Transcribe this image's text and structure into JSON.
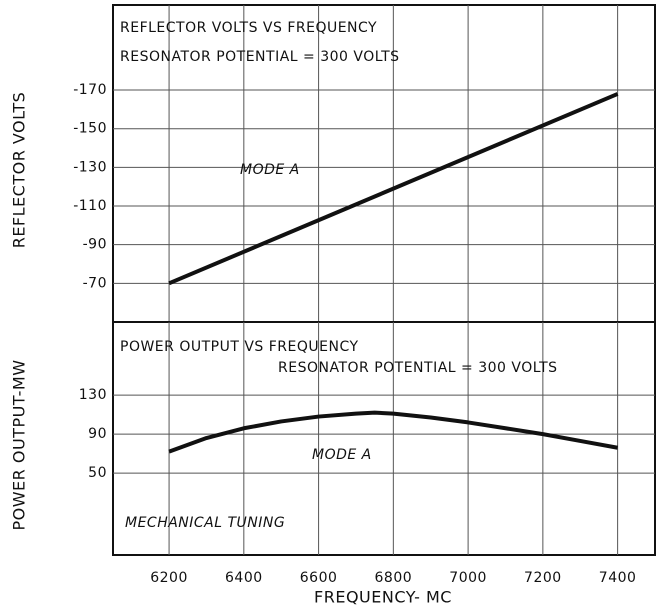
{
  "chart_data": [
    {
      "type": "line",
      "title": "REFLECTOR VOLTS VS FREQUENCY",
      "subtitle": "RESONATOR POTENTIAL = 300 VOLTS",
      "ylabel": "REFLECTOR VOLTS",
      "annotations": [
        "MODE A"
      ],
      "x": [
        6200,
        7400
      ],
      "series": [
        {
          "name": "MODE A",
          "color": "#111111",
          "values": [
            -70,
            -168
          ]
        }
      ],
      "xlim": [
        6050,
        7500
      ],
      "xticks": [
        6200,
        6400,
        6600,
        6800,
        7000,
        7200,
        7400
      ],
      "ylim": [
        -50,
        -214
      ],
      "yticks": [
        -70,
        -90,
        -110,
        -130,
        -150,
        -170
      ],
      "grid": true
    },
    {
      "type": "line",
      "title": "POWER OUTPUT VS FREQUENCY",
      "subtitle": "RESONATOR POTENTIAL = 300 VOLTS",
      "ylabel": "POWER OUTPUT-MW",
      "xlabel": "FREQUENCY- MC",
      "annotations": [
        "MODE A",
        "MECHANICAL TUNING"
      ],
      "x": [
        6200,
        6300,
        6400,
        6500,
        6600,
        6700,
        6750,
        6800,
        6900,
        7000,
        7100,
        7200,
        7300,
        7400
      ],
      "series": [
        {
          "name": "MODE A",
          "color": "#111111",
          "values": [
            72,
            86,
            96,
            103,
            108,
            111,
            112,
            111,
            107,
            102,
            96,
            90,
            83,
            76
          ]
        }
      ],
      "xlim": [
        6050,
        7500
      ],
      "xticks": [
        6200,
        6400,
        6600,
        6800,
        7000,
        7200,
        7400
      ],
      "ylim": [
        -34,
        205
      ],
      "yticks": [
        50,
        90,
        130
      ],
      "grid": true
    }
  ]
}
